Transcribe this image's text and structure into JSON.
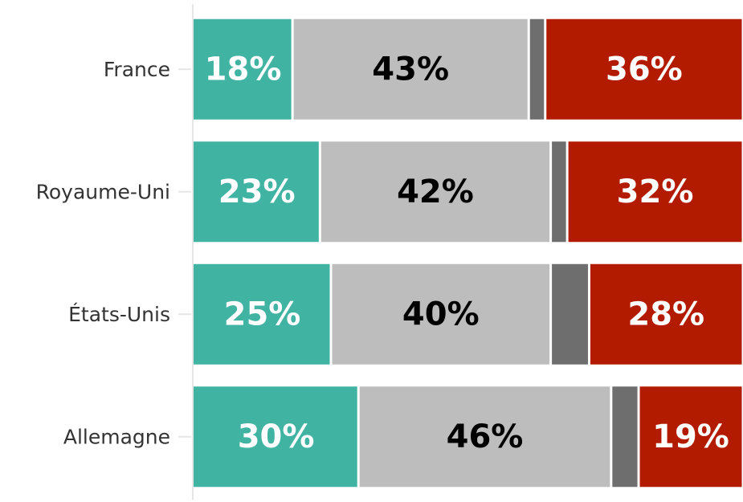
{
  "chart_data": {
    "type": "stacked_barh",
    "categories": [
      "France",
      "Royaume-Uni",
      "États-Unis",
      "Allemagne"
    ],
    "series": [
      {
        "color": "#41b3a3",
        "label_color": "#ffffff",
        "values": [
          18,
          23,
          25,
          30
        ],
        "value_labels": [
          "18%",
          "23%",
          "25%",
          "30%"
        ]
      },
      {
        "color": "#bdbdbd",
        "label_color": "#000000",
        "values": [
          43,
          42,
          40,
          46
        ],
        "value_labels": [
          "43%",
          "42%",
          "40%",
          "46%"
        ]
      },
      {
        "color": "#6e6e6e",
        "values": [
          3,
          3,
          7,
          5
        ]
      },
      {
        "color": "#b31b00",
        "label_color": "#ffffff",
        "values": [
          36,
          32,
          28,
          19
        ],
        "value_labels": [
          "36%",
          "32%",
          "28%",
          "19%"
        ]
      }
    ],
    "xlim": [
      0,
      100
    ]
  }
}
